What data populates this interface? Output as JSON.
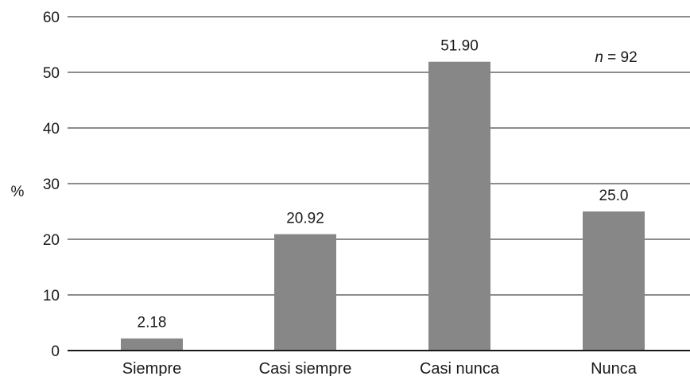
{
  "chart_data": {
    "type": "bar",
    "categories": [
      "Siempre",
      "Casi siempre",
      "Casi nunca",
      "Nunca"
    ],
    "values": [
      2.18,
      20.92,
      51.9,
      25.0
    ],
    "value_labels": [
      "2.18",
      "20.92",
      "51.90",
      "25.0"
    ],
    "ylabel": "%",
    "ylim": [
      0,
      60
    ],
    "yticks": [
      0,
      10,
      20,
      30,
      40,
      50,
      60
    ],
    "grid": true,
    "bar_color": "#878787",
    "annotation": {
      "italic": "n",
      "rest": " = 92"
    }
  }
}
